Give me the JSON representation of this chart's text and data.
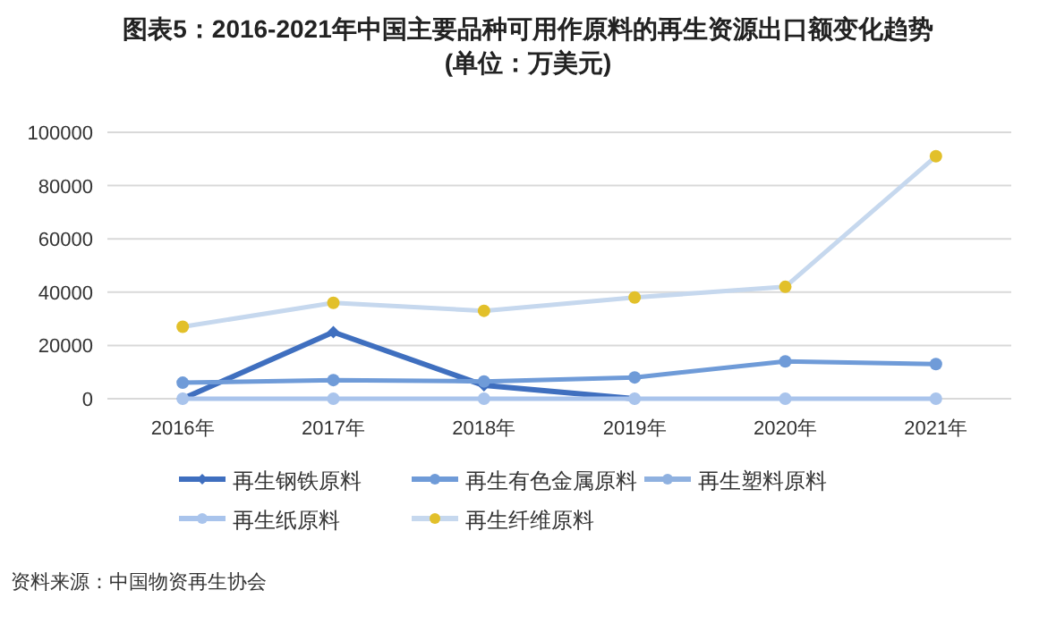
{
  "chart_data": {
    "type": "line",
    "title": "图表5：2016-2021年中国主要品种可用作原料的再生资源出口额变化趋势",
    "subtitle": "(单位：万美元)",
    "categories": [
      "2016年",
      "2017年",
      "2018年",
      "2019年",
      "2020年",
      "2021年"
    ],
    "ylim": [
      0,
      100000
    ],
    "yticks": [
      0,
      20000,
      40000,
      60000,
      80000,
      100000
    ],
    "grid": "y",
    "legend": "bottom",
    "series": [
      {
        "name": "再生钢铁原料",
        "color": "#3f6fbf",
        "marker": "diamond",
        "values": [
          0,
          25000,
          5000,
          0,
          null,
          null
        ]
      },
      {
        "name": "再生有色金属原料",
        "color": "#6f9bd8",
        "marker": "circle",
        "values": [
          6000,
          7000,
          6500,
          8000,
          14000,
          13000
        ]
      },
      {
        "name": "再生塑料原料",
        "color": "#8fb1e0",
        "marker": "circle",
        "values": [
          null,
          null,
          null,
          null,
          null,
          null
        ]
      },
      {
        "name": "再生纸原料",
        "color": "#a9c4ec",
        "marker": "circle",
        "values": [
          0,
          0,
          0,
          0,
          0,
          0
        ]
      },
      {
        "name": "再生纤维原料",
        "color": "#c6d8ee",
        "colors": [
          "#e2c02a",
          "#e2c02a",
          "#e2c02a",
          "#e2c02a",
          "#e2c02a",
          "#e2c02a"
        ],
        "marker": "circle",
        "values": [
          27000,
          36000,
          33000,
          38000,
          42000,
          91000
        ]
      }
    ],
    "annotations": [
      "资料来源：中国物资再生协会"
    ]
  }
}
